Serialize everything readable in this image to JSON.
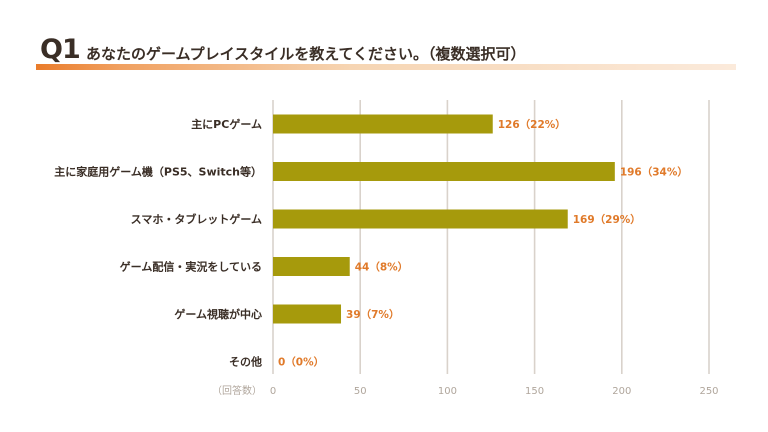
{
  "header": {
    "question_number": "Q1",
    "question_text": "あなたのゲームプレイスタイルを教えてください。（複数選択可）"
  },
  "colors": {
    "bar": "#a69a0c",
    "value_label": "#e07a2a",
    "title_accent": "#ea7c2b",
    "grid": "#d9d2cb",
    "text": "#3a2e26"
  },
  "chart_data": {
    "type": "bar",
    "orientation": "horizontal",
    "categories": [
      "主にPCゲーム",
      "主に家庭用ゲーム機（PS5、Switch等）",
      "スマホ・タブレットゲーム",
      "ゲーム配信・実況をしている",
      "ゲーム視聴が中心",
      "その他"
    ],
    "values": [
      126,
      196,
      169,
      44,
      39,
      0
    ],
    "value_labels": [
      "126（22%）",
      "196（34%）",
      "169（29%）",
      "44（8%）",
      "39（7%）",
      "0（0%）"
    ],
    "xlim": [
      0,
      250
    ],
    "xticks": [
      0,
      50,
      100,
      150,
      200,
      250
    ],
    "x_unit_label": "（回答数）",
    "grid": true
  }
}
